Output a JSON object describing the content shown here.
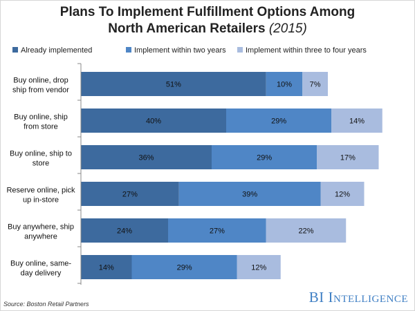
{
  "chart_data": {
    "type": "bar",
    "orientation": "horizontal",
    "stacked": true,
    "title_main": "Plans To Implement Fulfillment Options Among",
    "title_line2": "North American Retailers",
    "title_year": "(2015)",
    "categories": [
      [
        "Buy online, drop",
        "ship from vendor"
      ],
      [
        "Buy online, ship",
        "from store"
      ],
      [
        "Buy online, ship to",
        "store"
      ],
      [
        "Reserve online, pick",
        "up in-store"
      ],
      [
        "Buy anywhere, ship",
        "anywhere"
      ],
      [
        "Buy online, same-",
        "day delivery"
      ]
    ],
    "series": [
      {
        "name": "Already implemented",
        "color": "#3d6a9e",
        "values": [
          51,
          40,
          36,
          27,
          24,
          14
        ]
      },
      {
        "name": "Implement within two years",
        "color": "#4f86c6",
        "values": [
          10,
          29,
          29,
          39,
          27,
          29
        ]
      },
      {
        "name": "Implement within three to four years",
        "color": "#a9bcdf",
        "values": [
          7,
          14,
          17,
          12,
          22,
          12
        ]
      }
    ],
    "value_suffix": "%",
    "xlim": [
      0,
      100
    ],
    "legend_position": "top",
    "grid": false
  },
  "footer": {
    "source": "Source: Boston Retail Partners",
    "brand_bi": "BI",
    "brand_intelligence": "Intelligence"
  }
}
